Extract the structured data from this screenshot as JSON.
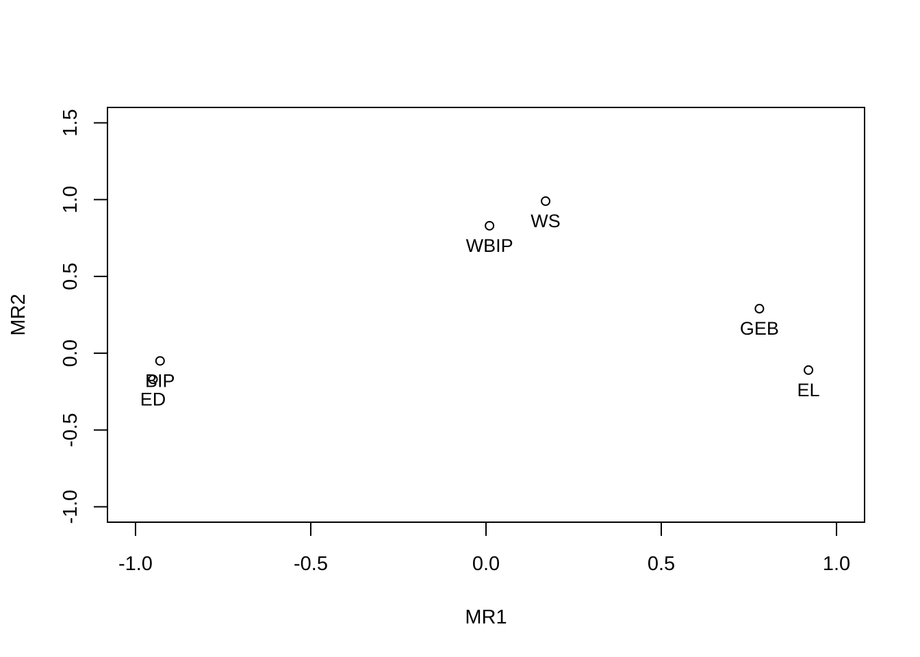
{
  "chart_data": {
    "type": "scatter",
    "title": "",
    "xlabel": "MR1",
    "ylabel": "MR2",
    "xlim": [
      -1.08,
      1.08
    ],
    "ylim": [
      -1.1,
      1.6
    ],
    "x_ticks": [
      -1.0,
      -0.5,
      0.0,
      0.5,
      1.0
    ],
    "x_tick_labels": [
      "-1.0",
      "-0.5",
      "0.0",
      "0.5",
      "1.0"
    ],
    "y_ticks": [
      -1.0,
      -0.5,
      0.0,
      0.5,
      1.0,
      1.5
    ],
    "y_tick_labels": [
      "-1.0",
      "-0.5",
      "0.0",
      "0.5",
      "1.0",
      "1.5"
    ],
    "grid": false,
    "points": [
      {
        "label": "BIP",
        "x": -0.93,
        "y": -0.05
      },
      {
        "label": "ED",
        "x": -0.95,
        "y": -0.17
      },
      {
        "label": "WBIP",
        "x": 0.01,
        "y": 0.83
      },
      {
        "label": "WS",
        "x": 0.17,
        "y": 0.99
      },
      {
        "label": "GEB",
        "x": 0.78,
        "y": 0.29
      },
      {
        "label": "EL",
        "x": 0.92,
        "y": -0.11
      }
    ]
  }
}
